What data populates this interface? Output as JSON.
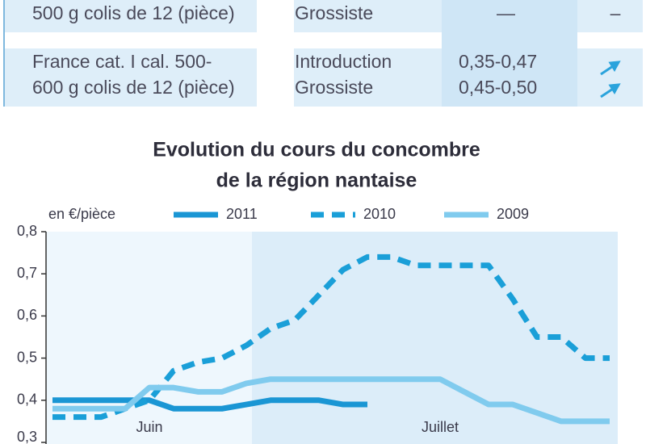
{
  "table": {
    "rows": [
      {
        "product": [
          "500 g colis de 12 (pièce)"
        ],
        "stages": [
          "Grossiste"
        ],
        "prices": [
          "—"
        ],
        "trend": [
          "–"
        ]
      },
      {
        "product": [
          "France cat. I cal. 500-",
          "600 g colis de 12 (pièce)"
        ],
        "stages": [
          "Introduction",
          "Grossiste"
        ],
        "prices": [
          "0,35-0,47",
          "0,45-0,50"
        ]
      }
    ]
  },
  "chart_data": {
    "type": "line",
    "title": [
      "Evolution du cours du concombre",
      "de la région nantaise"
    ],
    "y_label": "en €/pièce",
    "categories": [
      null,
      null,
      null,
      null,
      "Juin",
      null,
      null,
      null,
      null,
      null,
      null,
      null,
      null,
      null,
      null,
      null,
      "Juillet",
      null,
      null,
      null,
      null,
      null,
      null,
      null
    ],
    "series": [
      {
        "name": "2011",
        "color": "#1a96d4",
        "dash": false,
        "values": [
          0.4,
          0.4,
          0.4,
          0.4,
          0.4,
          0.38,
          0.38,
          0.38,
          0.39,
          0.4,
          0.4,
          0.4,
          0.39,
          0.39,
          null,
          null,
          null,
          null,
          null,
          null,
          null,
          null,
          null,
          null
        ]
      },
      {
        "name": "2010",
        "color": "#1a9fd8",
        "dash": true,
        "values": [
          0.36,
          0.36,
          0.36,
          0.38,
          0.4,
          0.47,
          0.49,
          0.5,
          0.53,
          0.57,
          0.59,
          0.65,
          0.71,
          0.74,
          0.74,
          0.72,
          0.72,
          0.72,
          0.72,
          0.64,
          0.55,
          0.55,
          0.5,
          0.5
        ]
      },
      {
        "name": "2009",
        "color": "#80cbee",
        "dash": false,
        "values": [
          0.38,
          0.38,
          0.38,
          0.38,
          0.43,
          0.43,
          0.42,
          0.42,
          0.44,
          0.45,
          0.45,
          0.45,
          0.45,
          0.45,
          0.45,
          0.45,
          0.45,
          0.42,
          0.39,
          0.39,
          0.37,
          0.35,
          0.35,
          0.35
        ]
      }
    ],
    "ylim": [
      0.3,
      0.8
    ],
    "yticks": [
      {
        "value": 0.3,
        "label": "0,3"
      },
      {
        "value": 0.4,
        "label": "0,4"
      },
      {
        "value": 0.5,
        "label": "0,5"
      },
      {
        "value": 0.6,
        "label": "0,6"
      },
      {
        "value": 0.7,
        "label": "0,7"
      },
      {
        "value": 0.8,
        "label": "0,8"
      }
    ],
    "grid": false
  }
}
